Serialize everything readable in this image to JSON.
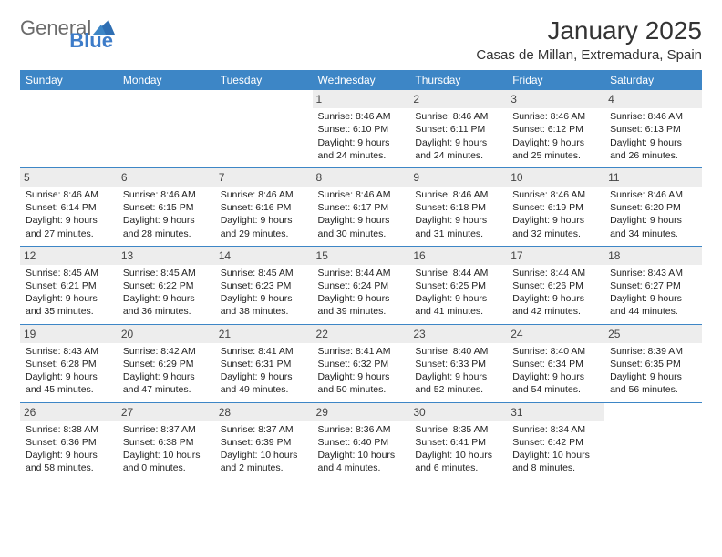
{
  "logo": {
    "word1": "General",
    "word2": "Blue"
  },
  "title": "January 2025",
  "location": "Casas de Millan, Extremadura, Spain",
  "columns": [
    "Sunday",
    "Monday",
    "Tuesday",
    "Wednesday",
    "Thursday",
    "Friday",
    "Saturday"
  ],
  "colors": {
    "header_bg": "#3d86c6",
    "header_fg": "#ffffff",
    "daynum_bg": "#ededed",
    "rule": "#3d86c6",
    "logo_gray": "#6b6b6b",
    "logo_blue": "#3d7cc9"
  },
  "weeks": [
    [
      {
        "n": "",
        "sr": "",
        "ss": "",
        "dl1": "",
        "dl2": ""
      },
      {
        "n": "",
        "sr": "",
        "ss": "",
        "dl1": "",
        "dl2": ""
      },
      {
        "n": "",
        "sr": "",
        "ss": "",
        "dl1": "",
        "dl2": ""
      },
      {
        "n": "1",
        "sr": "Sunrise: 8:46 AM",
        "ss": "Sunset: 6:10 PM",
        "dl1": "Daylight: 9 hours",
        "dl2": "and 24 minutes."
      },
      {
        "n": "2",
        "sr": "Sunrise: 8:46 AM",
        "ss": "Sunset: 6:11 PM",
        "dl1": "Daylight: 9 hours",
        "dl2": "and 24 minutes."
      },
      {
        "n": "3",
        "sr": "Sunrise: 8:46 AM",
        "ss": "Sunset: 6:12 PM",
        "dl1": "Daylight: 9 hours",
        "dl2": "and 25 minutes."
      },
      {
        "n": "4",
        "sr": "Sunrise: 8:46 AM",
        "ss": "Sunset: 6:13 PM",
        "dl1": "Daylight: 9 hours",
        "dl2": "and 26 minutes."
      }
    ],
    [
      {
        "n": "5",
        "sr": "Sunrise: 8:46 AM",
        "ss": "Sunset: 6:14 PM",
        "dl1": "Daylight: 9 hours",
        "dl2": "and 27 minutes."
      },
      {
        "n": "6",
        "sr": "Sunrise: 8:46 AM",
        "ss": "Sunset: 6:15 PM",
        "dl1": "Daylight: 9 hours",
        "dl2": "and 28 minutes."
      },
      {
        "n": "7",
        "sr": "Sunrise: 8:46 AM",
        "ss": "Sunset: 6:16 PM",
        "dl1": "Daylight: 9 hours",
        "dl2": "and 29 minutes."
      },
      {
        "n": "8",
        "sr": "Sunrise: 8:46 AM",
        "ss": "Sunset: 6:17 PM",
        "dl1": "Daylight: 9 hours",
        "dl2": "and 30 minutes."
      },
      {
        "n": "9",
        "sr": "Sunrise: 8:46 AM",
        "ss": "Sunset: 6:18 PM",
        "dl1": "Daylight: 9 hours",
        "dl2": "and 31 minutes."
      },
      {
        "n": "10",
        "sr": "Sunrise: 8:46 AM",
        "ss": "Sunset: 6:19 PM",
        "dl1": "Daylight: 9 hours",
        "dl2": "and 32 minutes."
      },
      {
        "n": "11",
        "sr": "Sunrise: 8:46 AM",
        "ss": "Sunset: 6:20 PM",
        "dl1": "Daylight: 9 hours",
        "dl2": "and 34 minutes."
      }
    ],
    [
      {
        "n": "12",
        "sr": "Sunrise: 8:45 AM",
        "ss": "Sunset: 6:21 PM",
        "dl1": "Daylight: 9 hours",
        "dl2": "and 35 minutes."
      },
      {
        "n": "13",
        "sr": "Sunrise: 8:45 AM",
        "ss": "Sunset: 6:22 PM",
        "dl1": "Daylight: 9 hours",
        "dl2": "and 36 minutes."
      },
      {
        "n": "14",
        "sr": "Sunrise: 8:45 AM",
        "ss": "Sunset: 6:23 PM",
        "dl1": "Daylight: 9 hours",
        "dl2": "and 38 minutes."
      },
      {
        "n": "15",
        "sr": "Sunrise: 8:44 AM",
        "ss": "Sunset: 6:24 PM",
        "dl1": "Daylight: 9 hours",
        "dl2": "and 39 minutes."
      },
      {
        "n": "16",
        "sr": "Sunrise: 8:44 AM",
        "ss": "Sunset: 6:25 PM",
        "dl1": "Daylight: 9 hours",
        "dl2": "and 41 minutes."
      },
      {
        "n": "17",
        "sr": "Sunrise: 8:44 AM",
        "ss": "Sunset: 6:26 PM",
        "dl1": "Daylight: 9 hours",
        "dl2": "and 42 minutes."
      },
      {
        "n": "18",
        "sr": "Sunrise: 8:43 AM",
        "ss": "Sunset: 6:27 PM",
        "dl1": "Daylight: 9 hours",
        "dl2": "and 44 minutes."
      }
    ],
    [
      {
        "n": "19",
        "sr": "Sunrise: 8:43 AM",
        "ss": "Sunset: 6:28 PM",
        "dl1": "Daylight: 9 hours",
        "dl2": "and 45 minutes."
      },
      {
        "n": "20",
        "sr": "Sunrise: 8:42 AM",
        "ss": "Sunset: 6:29 PM",
        "dl1": "Daylight: 9 hours",
        "dl2": "and 47 minutes."
      },
      {
        "n": "21",
        "sr": "Sunrise: 8:41 AM",
        "ss": "Sunset: 6:31 PM",
        "dl1": "Daylight: 9 hours",
        "dl2": "and 49 minutes."
      },
      {
        "n": "22",
        "sr": "Sunrise: 8:41 AM",
        "ss": "Sunset: 6:32 PM",
        "dl1": "Daylight: 9 hours",
        "dl2": "and 50 minutes."
      },
      {
        "n": "23",
        "sr": "Sunrise: 8:40 AM",
        "ss": "Sunset: 6:33 PM",
        "dl1": "Daylight: 9 hours",
        "dl2": "and 52 minutes."
      },
      {
        "n": "24",
        "sr": "Sunrise: 8:40 AM",
        "ss": "Sunset: 6:34 PM",
        "dl1": "Daylight: 9 hours",
        "dl2": "and 54 minutes."
      },
      {
        "n": "25",
        "sr": "Sunrise: 8:39 AM",
        "ss": "Sunset: 6:35 PM",
        "dl1": "Daylight: 9 hours",
        "dl2": "and 56 minutes."
      }
    ],
    [
      {
        "n": "26",
        "sr": "Sunrise: 8:38 AM",
        "ss": "Sunset: 6:36 PM",
        "dl1": "Daylight: 9 hours",
        "dl2": "and 58 minutes."
      },
      {
        "n": "27",
        "sr": "Sunrise: 8:37 AM",
        "ss": "Sunset: 6:38 PM",
        "dl1": "Daylight: 10 hours",
        "dl2": "and 0 minutes."
      },
      {
        "n": "28",
        "sr": "Sunrise: 8:37 AM",
        "ss": "Sunset: 6:39 PM",
        "dl1": "Daylight: 10 hours",
        "dl2": "and 2 minutes."
      },
      {
        "n": "29",
        "sr": "Sunrise: 8:36 AM",
        "ss": "Sunset: 6:40 PM",
        "dl1": "Daylight: 10 hours",
        "dl2": "and 4 minutes."
      },
      {
        "n": "30",
        "sr": "Sunrise: 8:35 AM",
        "ss": "Sunset: 6:41 PM",
        "dl1": "Daylight: 10 hours",
        "dl2": "and 6 minutes."
      },
      {
        "n": "31",
        "sr": "Sunrise: 8:34 AM",
        "ss": "Sunset: 6:42 PM",
        "dl1": "Daylight: 10 hours",
        "dl2": "and 8 minutes."
      },
      {
        "n": "",
        "sr": "",
        "ss": "",
        "dl1": "",
        "dl2": ""
      }
    ]
  ]
}
